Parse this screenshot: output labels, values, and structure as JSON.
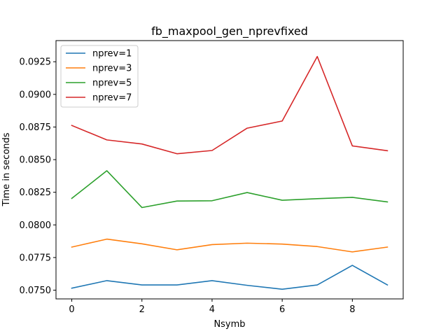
{
  "chart_data": {
    "type": "line",
    "title": "fb_maxpool_gen_nprevfixed",
    "xlabel": "Nsymb",
    "ylabel": "Time in seconds",
    "x": [
      0,
      1,
      2,
      3,
      4,
      5,
      6,
      7,
      8,
      9
    ],
    "xlim": [
      -0.45,
      9.45
    ],
    "ylim": [
      0.07433,
      0.09412
    ],
    "xticks": [
      0,
      2,
      4,
      6,
      8
    ],
    "xtick_labels": [
      "0",
      "2",
      "4",
      "6",
      "8"
    ],
    "yticks": [
      0.075,
      0.0775,
      0.08,
      0.0825,
      0.085,
      0.0875,
      0.09,
      0.0925
    ],
    "ytick_labels": [
      "0.0750",
      "0.0775",
      "0.0800",
      "0.0825",
      "0.0850",
      "0.0875",
      "0.0900",
      "0.0925"
    ],
    "grid": false,
    "legend_position": "top-left",
    "series": [
      {
        "name": "nprev=1",
        "color": "#1f77b4",
        "values": [
          0.07515,
          0.07573,
          0.0754,
          0.0754,
          0.07573,
          0.07537,
          0.07507,
          0.0754,
          0.0769,
          0.0754
        ]
      },
      {
        "name": "nprev=3",
        "color": "#ff7f0e",
        "values": [
          0.0783,
          0.07891,
          0.07855,
          0.07809,
          0.07849,
          0.0786,
          0.07853,
          0.07834,
          0.07793,
          0.0783
        ]
      },
      {
        "name": "nprev=5",
        "color": "#2ca02c",
        "values": [
          0.08203,
          0.08415,
          0.08133,
          0.08183,
          0.08185,
          0.08248,
          0.08189,
          0.08201,
          0.08211,
          0.08176
        ]
      },
      {
        "name": "nprev=7",
        "color": "#d62728",
        "values": [
          0.08762,
          0.08651,
          0.0862,
          0.08545,
          0.0857,
          0.08741,
          0.08796,
          0.0929,
          0.08605,
          0.08568
        ]
      }
    ]
  }
}
